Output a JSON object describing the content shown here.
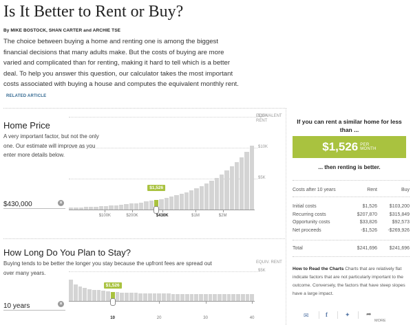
{
  "article": {
    "title": "Is It Better to Rent or Buy?",
    "byline": "By MIKE BOSTOCK, SHAN CARTER and ARCHIE TSE",
    "intro": "The choice between buying a home and renting one is among the biggest financial decisions that many adults make. But the costs of buying are more varied and complicated than for renting, making it hard to tell which is a better deal. To help you answer this question, our calculator takes the most important costs associated with buying a house and computes the equivalent monthly rent.",
    "related_link": "RELATED ARTICLE"
  },
  "home_price": {
    "title": "Home Price",
    "description": "A very important factor, but not the only one. Our estimate will improve as you enter more details below.",
    "value": "$430,000",
    "axis_header": "EQUIVALENT RENT",
    "y_ticks": [
      "$15K",
      "$10K",
      "$5K"
    ],
    "x_ticks": [
      "$100K",
      "$200K",
      "$430K",
      "$1M",
      "$2M"
    ],
    "selected_label": "$1,526"
  },
  "stay": {
    "title": "How Long Do You Plan to Stay?",
    "description": "Buying tends to be better the longer you stay because the upfront fees are spread out over many years.",
    "value": "10 years",
    "axis_header": "EQUIV. RENT",
    "y_ticks": [
      "$5K"
    ],
    "x_ticks": [
      "10",
      "20",
      "30",
      "40"
    ],
    "selected_label": "$1,526"
  },
  "chart_data": [
    {
      "type": "bar",
      "xlabel": "Home Price",
      "ylabel": "EQUIVALENT RENT",
      "x_scale": "log",
      "tick_labels": [
        "$100K",
        "$200K",
        "$430K",
        "$1M",
        "$2M"
      ],
      "selected": {
        "x": 430000,
        "label": "$1,526"
      },
      "ylim": [
        0,
        15000
      ],
      "values": [
        290,
        320,
        355,
        390,
        430,
        475,
        525,
        580,
        640,
        705,
        780,
        860,
        950,
        1050,
        1160,
        1280,
        1415,
        1526,
        1720,
        1900,
        2100,
        2320,
        2560,
        2830,
        3130,
        3460,
        3820,
        4220,
        4660,
        5150,
        5690,
        6290,
        6950,
        7680,
        8490,
        9380,
        10370
      ]
    },
    {
      "type": "bar",
      "xlabel": "Years",
      "ylabel": "EQUIV. RENT",
      "tick_labels": [
        "10",
        "20",
        "30",
        "40"
      ],
      "selected": {
        "x": 10,
        "label": "$1,526"
      },
      "ylim": [
        0,
        6500
      ],
      "values": [
        3650,
        2820,
        2420,
        2180,
        2020,
        1900,
        1800,
        1720,
        1660,
        1526,
        1480,
        1440,
        1400,
        1370,
        1340,
        1320,
        1300,
        1280,
        1265,
        1250,
        1238,
        1226,
        1215,
        1205,
        1196,
        1188,
        1180,
        1173,
        1166,
        1160,
        1154,
        1148,
        1143,
        1138,
        1133,
        1129,
        1125,
        1121,
        1117,
        1114
      ]
    }
  ],
  "result": {
    "question": "If you can rent a similar home for less than ...",
    "amount": "$1,526",
    "unit_line1": "PER",
    "unit_line2": "MONTH",
    "conclusion": "... then renting is better."
  },
  "costs": {
    "header": {
      "label": "Costs after 10 years",
      "rent": "Rent",
      "buy": "Buy"
    },
    "rows": [
      {
        "label": "Initial costs",
        "rent": "$1,526",
        "buy": "$103,200"
      },
      {
        "label": "Recurring costs",
        "rent": "$207,870",
        "buy": "$315,849"
      },
      {
        "label": "Opportunity costs",
        "rent": "$33,826",
        "buy": "$92,573"
      },
      {
        "label": "Net proceeds",
        "rent": "-$1,526",
        "buy": "-$269,926"
      }
    ],
    "total": {
      "label": "Total",
      "rent": "$241,696",
      "buy": "$241,696"
    }
  },
  "howto": {
    "heading": "How to Read the Charts",
    "text": "Charts that are relatively flat indicate factors that are not particularly important to the outcome. Conversely, the factors that have steep slopes have a large impact."
  },
  "share": {
    "more_label": "MORE",
    "icons": [
      "email-icon",
      "facebook-icon",
      "twitter-icon",
      "share-arrow-icon"
    ]
  },
  "colors": {
    "accent": "#a9c23f",
    "bar": "#d4d4d4",
    "link": "#326891"
  }
}
